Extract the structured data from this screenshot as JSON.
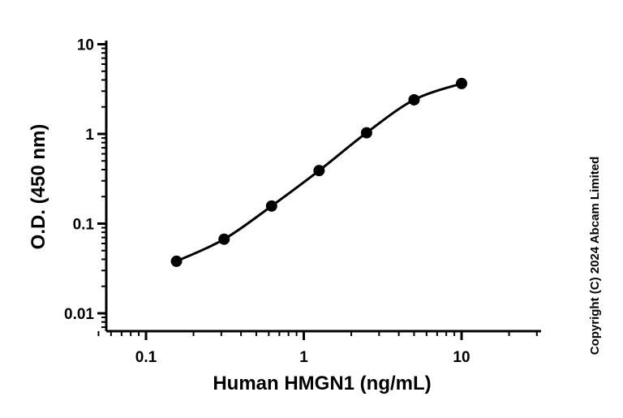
{
  "chart_data": {
    "type": "scatter",
    "title": "",
    "xlabel": "Human HMGN1 (ng/mL)",
    "ylabel": "O.D. (450 nm)",
    "x_scale": "log",
    "y_scale": "log",
    "xlim": [
      0.05,
      30
    ],
    "ylim": [
      0.007,
      10
    ],
    "x_ticks": [
      {
        "value": 0.1,
        "label": "0.1"
      },
      {
        "value": 1,
        "label": "1"
      },
      {
        "value": 10,
        "label": "10"
      }
    ],
    "y_ticks": [
      {
        "value": 0.01,
        "label": "0.01"
      },
      {
        "value": 0.1,
        "label": "0.1"
      },
      {
        "value": 1,
        "label": "1"
      },
      {
        "value": 10,
        "label": "10"
      }
    ],
    "series": [
      {
        "x": [
          0.156,
          0.3125,
          0.625,
          1.25,
          2.5,
          5,
          10
        ],
        "y": [
          0.038,
          0.067,
          0.157,
          0.39,
          1.03,
          2.4,
          3.65
        ],
        "marker": "circle",
        "fit": "4PL",
        "color": "#000000"
      }
    ],
    "grid": false,
    "legend": "none"
  },
  "copyright": "Copyright (C) 2024 Abcam Limited"
}
